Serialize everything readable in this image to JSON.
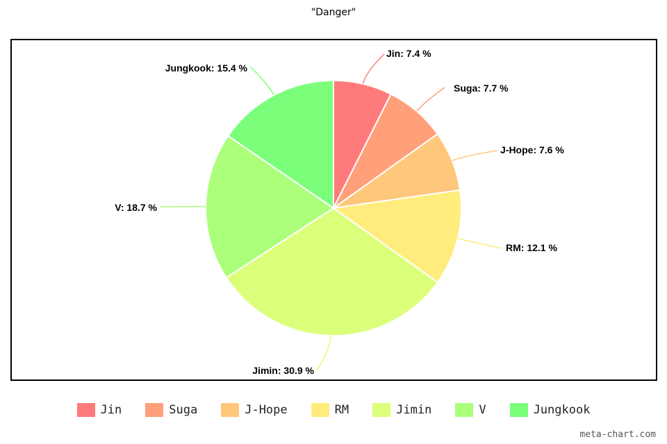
{
  "chart_data": {
    "type": "pie",
    "title": "\"Danger\"",
    "start_angle_deg": 0,
    "slices": [
      {
        "label": "Jin",
        "value": 7.4,
        "color": "#ff7b7b",
        "data_label": "Jin: 7.4 %"
      },
      {
        "label": "Suga",
        "value": 7.7,
        "color": "#ffa07a",
        "data_label": "Suga: 7.7 %"
      },
      {
        "label": "J-Hope",
        "value": 7.6,
        "color": "#ffc77c",
        "data_label": "J-Hope: 7.6 %"
      },
      {
        "label": "RM",
        "value": 12.1,
        "color": "#ffec7c",
        "data_label": "RM: 12.1 %"
      },
      {
        "label": "Jimin",
        "value": 30.9,
        "color": "#dcff7b",
        "data_label": "Jimin: 30.9 %"
      },
      {
        "label": "V",
        "value": 18.7,
        "color": "#acff7b",
        "data_label": "V: 18.7 %"
      },
      {
        "label": "Jungkook",
        "value": 15.4,
        "color": "#7bff7b",
        "data_label": "Jungkook: 15.4 %"
      }
    ],
    "legend_position": "bottom"
  },
  "watermark": "meta-chart.com"
}
